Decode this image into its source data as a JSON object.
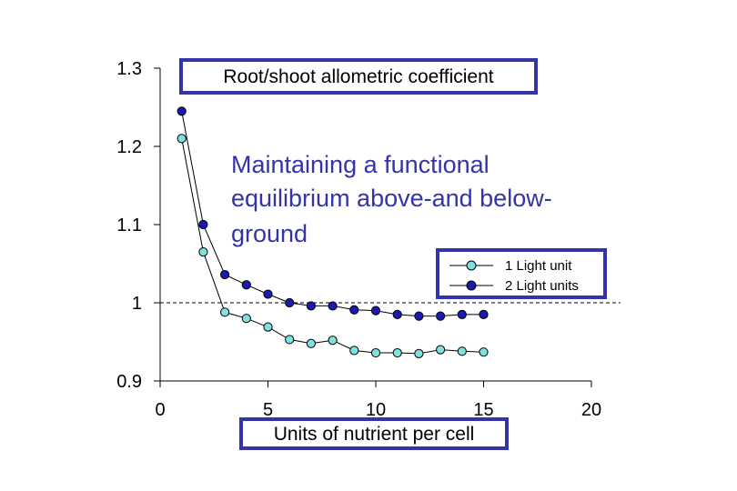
{
  "chart_data": {
    "type": "line",
    "title": "Root/shoot allometric coefficient",
    "xlabel": "Units of nutrient per cell",
    "ylabel": "",
    "xlim": [
      0,
      20
    ],
    "ylim": [
      0.9,
      1.3
    ],
    "xticks": [
      0,
      5,
      10,
      15,
      20
    ],
    "yticks": [
      {
        "value": 0.9,
        "label": "0.9"
      },
      {
        "value": 1.0,
        "label": "1"
      },
      {
        "value": 1.1,
        "label": "1.1"
      },
      {
        "value": 1.2,
        "label": "1.2"
      },
      {
        "value": 1.3,
        "label": "1.3"
      }
    ],
    "reference_line": 1.0,
    "annotation": [
      "Maintaining a functional",
      "equilibrium above-and below-",
      "ground"
    ],
    "legend_position": "upper-right",
    "x": [
      1,
      2,
      3,
      4,
      5,
      6,
      7,
      8,
      9,
      10,
      11,
      12,
      13,
      14,
      15
    ],
    "series": [
      {
        "name": "1 Light unit",
        "color": "#7fe0e0",
        "values": [
          1.21,
          1.065,
          0.988,
          0.98,
          0.969,
          0.953,
          0.948,
          0.952,
          0.939,
          0.936,
          0.936,
          0.935,
          0.94,
          0.938,
          0.937
        ]
      },
      {
        "name": "2 Light units",
        "color": "#1a1ab0",
        "values": [
          1.245,
          1.1,
          1.036,
          1.023,
          1.011,
          1.0,
          0.996,
          0.996,
          0.991,
          0.99,
          0.985,
          0.983,
          0.983,
          0.985,
          0.985
        ]
      }
    ]
  }
}
